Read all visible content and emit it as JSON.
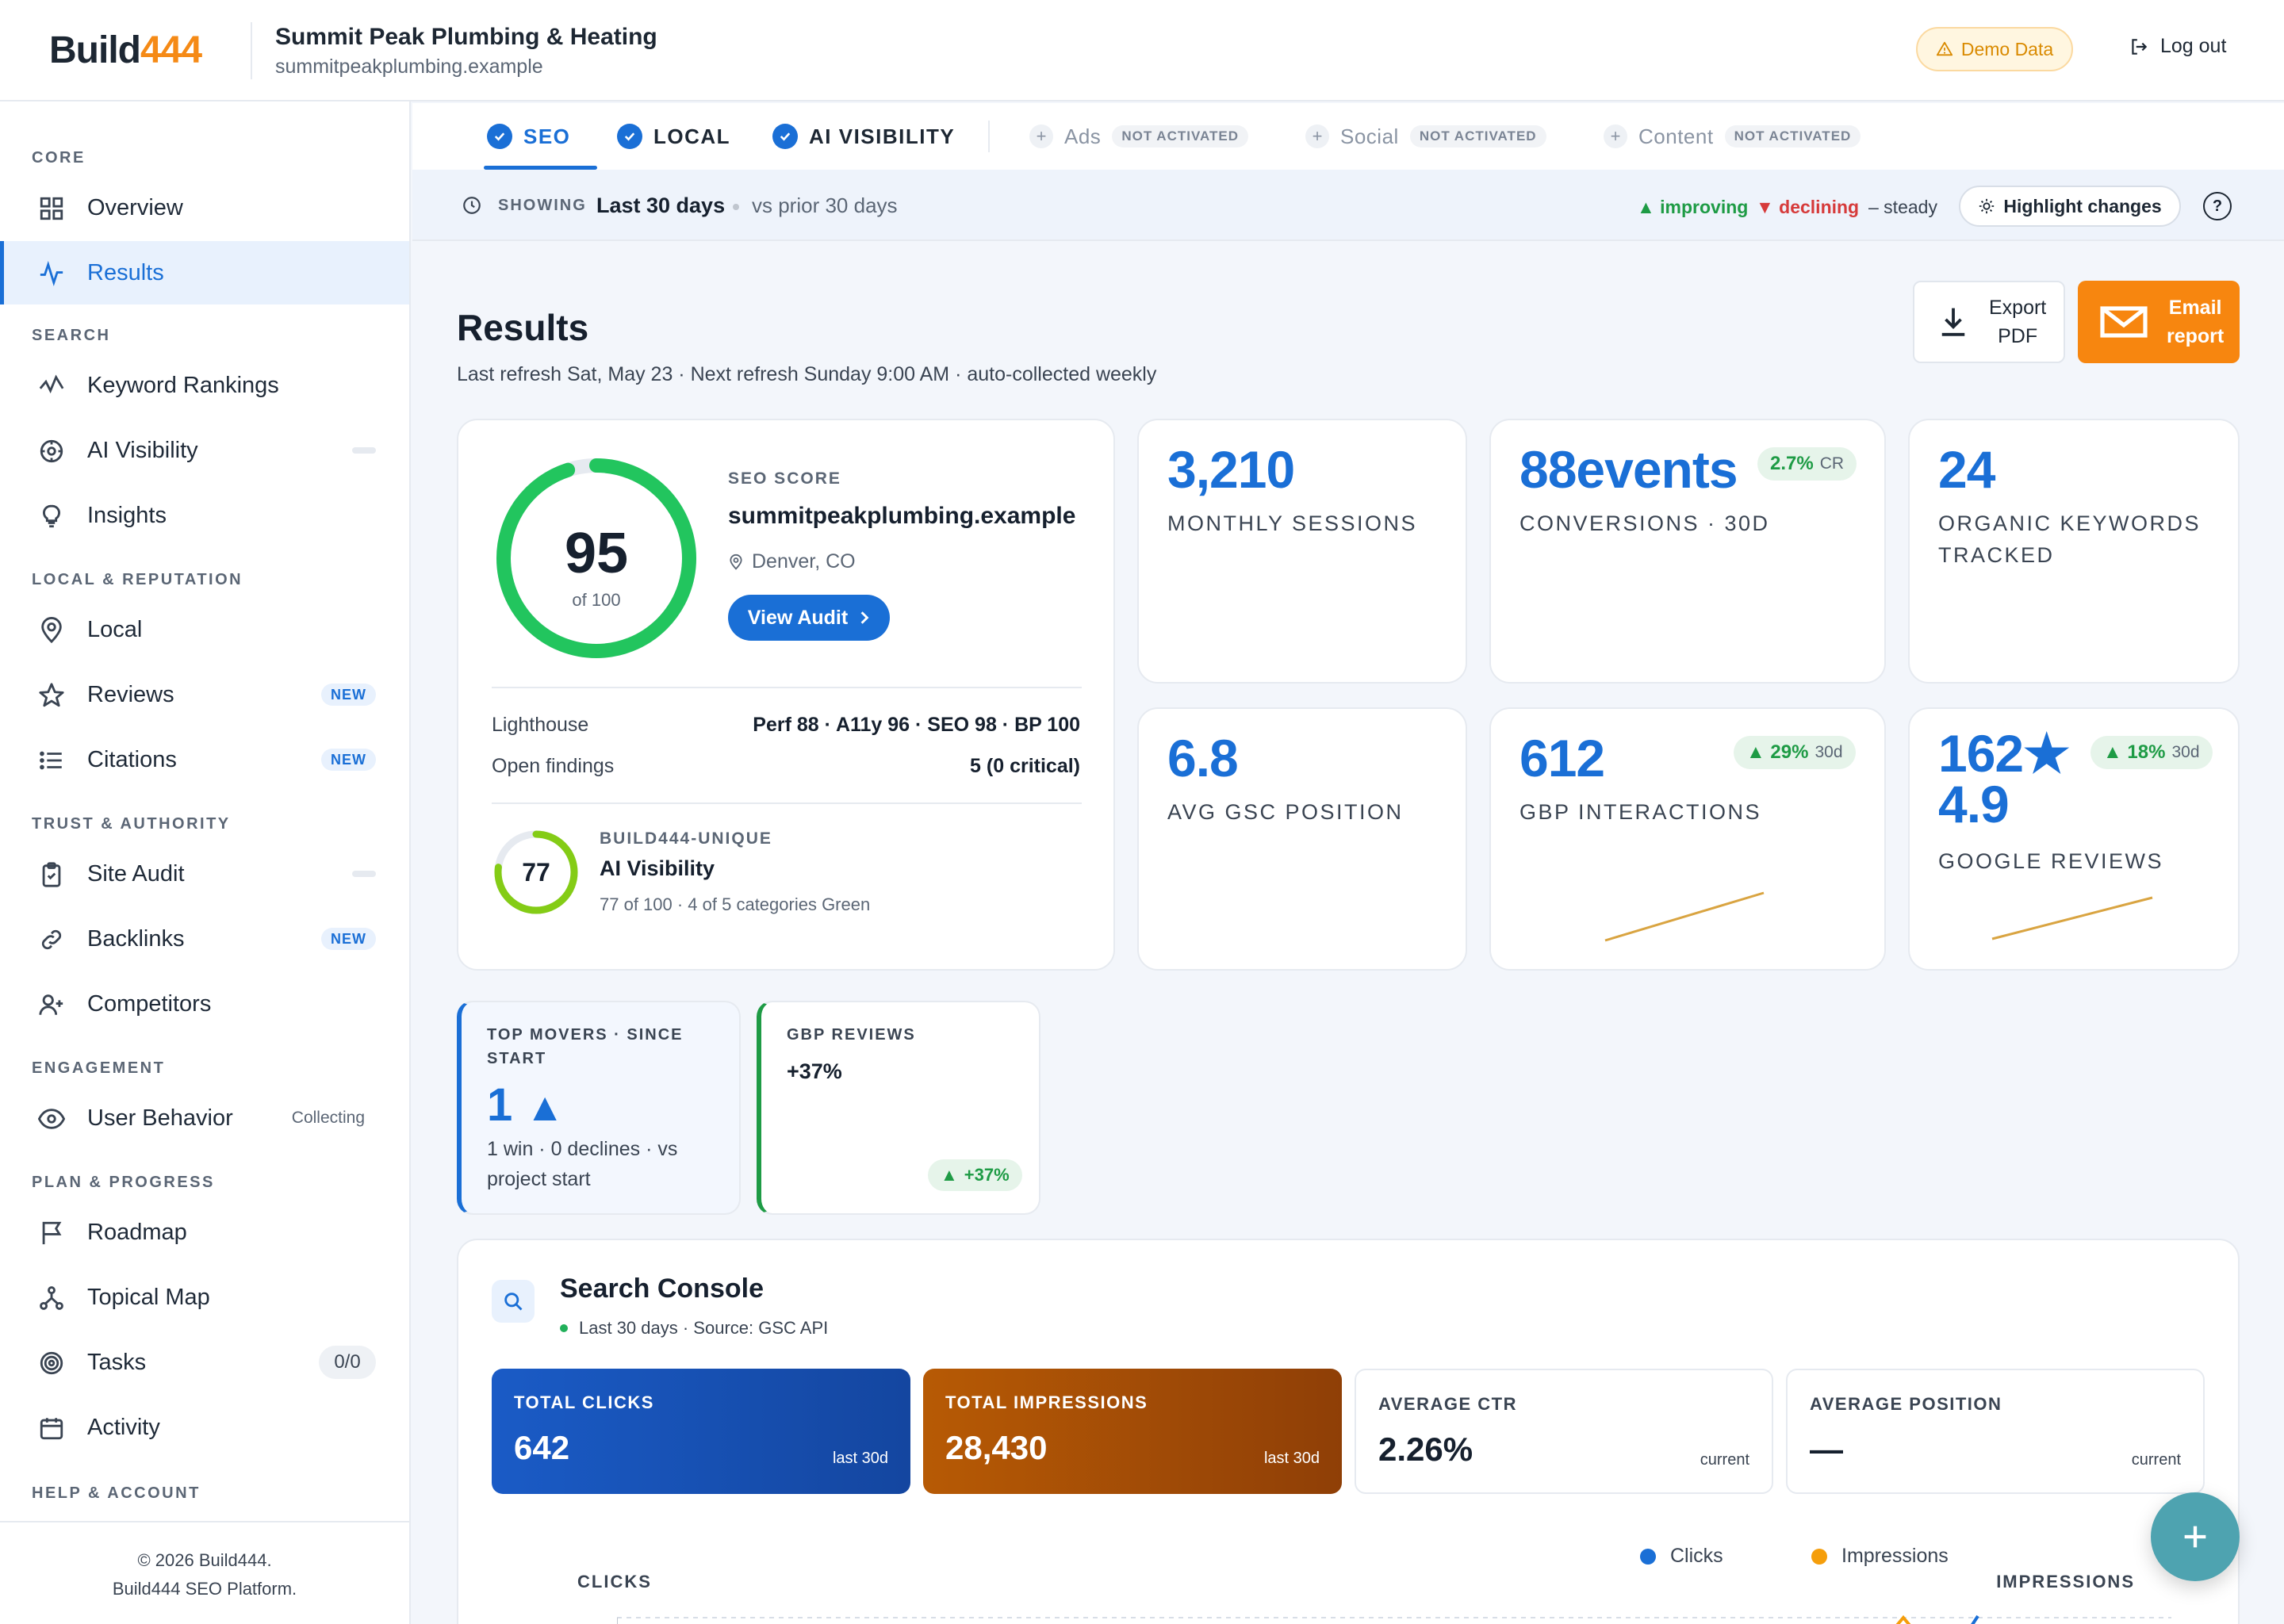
{
  "brand": {
    "logo_text": "Build",
    "logo_num": "444"
  },
  "header": {
    "business_name": "Summit Peak Plumbing & Heating",
    "business_url": "summitpeakplumbing.example",
    "demo_label": "Demo Data",
    "logout_label": "Log out"
  },
  "sidebar": {
    "sections": {
      "core": "CORE",
      "search": "SEARCH",
      "local": "LOCAL & REPUTATION",
      "trust": "TRUST & AUTHORITY",
      "engagement": "ENGAGEMENT",
      "plan": "PLAN & PROGRESS",
      "help": "HELP & ACCOUNT"
    },
    "items": {
      "overview": "Overview",
      "results": "Results",
      "keyword_rankings": "Keyword Rankings",
      "ai_visibility": "AI Visibility",
      "insights": "Insights",
      "local": "Local",
      "reviews": "Reviews",
      "citations": "Citations",
      "site_audit": "Site Audit",
      "backlinks": "Backlinks",
      "competitors": "Competitors",
      "user_behavior": "User Behavior",
      "roadmap": "Roadmap",
      "topical_map": "Topical Map",
      "tasks": "Tasks",
      "activity": "Activity"
    },
    "badge_new": "NEW",
    "collecting": "Collecting",
    "tasks_count": "0/0",
    "footer_line1": "© 2026 Build444.",
    "footer_line2": "Build444 SEO Platform."
  },
  "tabs": {
    "seo": "SEO",
    "local": "LOCAL",
    "ai_visibility": "AI VISIBILITY",
    "ads": "Ads",
    "social": "Social",
    "content": "Content",
    "not_activated": "NOT ACTIVATED"
  },
  "showing": {
    "label": "SHOWING",
    "range": "Last 30 days",
    "compare": "vs prior 30 days",
    "improving": "improving",
    "declining": "declining",
    "steady": "– steady",
    "highlight_button": "Highlight changes"
  },
  "page": {
    "title": "Results",
    "subtitle": "Last refresh Sat, May 23 · Next refresh Sunday 9:00 AM · auto-collected weekly",
    "export_label_1": "Export",
    "export_label_2": "PDF",
    "email_label_1": "Email",
    "email_label_2": "report"
  },
  "score_card": {
    "score": "95",
    "of": "of 100",
    "score_fraction": 0.95,
    "label": "SEO SCORE",
    "site": "summitpeakplumbing.example",
    "location": "Denver, CO",
    "audit_button": "View Audit",
    "lighthouse_label": "Lighthouse",
    "lighthouse_value": "Perf 88 · A11y 96 · SEO 98 · BP 100",
    "findings_label": "Open findings",
    "findings_value": "5 (0 critical)",
    "ai_score": "77",
    "ai_fraction": 0.77,
    "ai_label": "BUILD444-UNIQUE",
    "ai_title": "AI Visibility",
    "ai_sub": "77 of 100 · 4 of 5 categories Green"
  },
  "metrics": {
    "sessions_value": "3,210",
    "sessions_label": "MONTHLY SESSIONS",
    "conversions_value": "88events",
    "conversions_label": "CONVERSIONS · 30D",
    "conversions_delta": "2.7%",
    "conversions_delta_sub": "CR",
    "keywords_value": "24",
    "keywords_label_1": "ORGANIC KEYWORDS",
    "keywords_label_2": "TRACKED",
    "gsc_value": "6.8",
    "gsc_label": "AVG GSC POSITION",
    "gbp_value": "612",
    "gbp_label": "GBP INTERACTIONS",
    "gbp_delta": "29%",
    "gbp_delta_sub": "30d",
    "reviews_value_1": "162★",
    "reviews_value_2": "4.9",
    "reviews_label": "GOOGLE REVIEWS",
    "reviews_delta": "18%",
    "reviews_delta_sub": "30d"
  },
  "movers": {
    "label_1": "TOP MOVERS · SINCE",
    "label_2": "START",
    "value": "1",
    "text_1": "1 win · 0 declines · vs",
    "text_2": "project start",
    "gbp_label": "GBP REVIEWS",
    "gbp_value": "+37%",
    "gbp_delta": "+37%"
  },
  "search_console": {
    "title": "Search Console",
    "subtitle": "Last 30 days · Source: GSC API",
    "tiles": [
      {
        "label": "TOTAL CLICKS",
        "value": "642",
        "period": "last 30d"
      },
      {
        "label": "TOTAL IMPRESSIONS",
        "value": "28,430",
        "period": "last 30d"
      },
      {
        "label": "AVERAGE CTR",
        "value": "2.26%",
        "period": "current"
      },
      {
        "label": "AVERAGE POSITION",
        "value": "—",
        "period": "current"
      }
    ],
    "legend_clicks": "Clicks",
    "legend_impressions": "Impressions",
    "axis_left": "CLICKS",
    "axis_right": "IMPRESSIONS"
  },
  "colors": {
    "accent": "#1a6fd6",
    "orange": "#f7860f",
    "green": "#22c55e",
    "sparkline": "#d9a441"
  }
}
